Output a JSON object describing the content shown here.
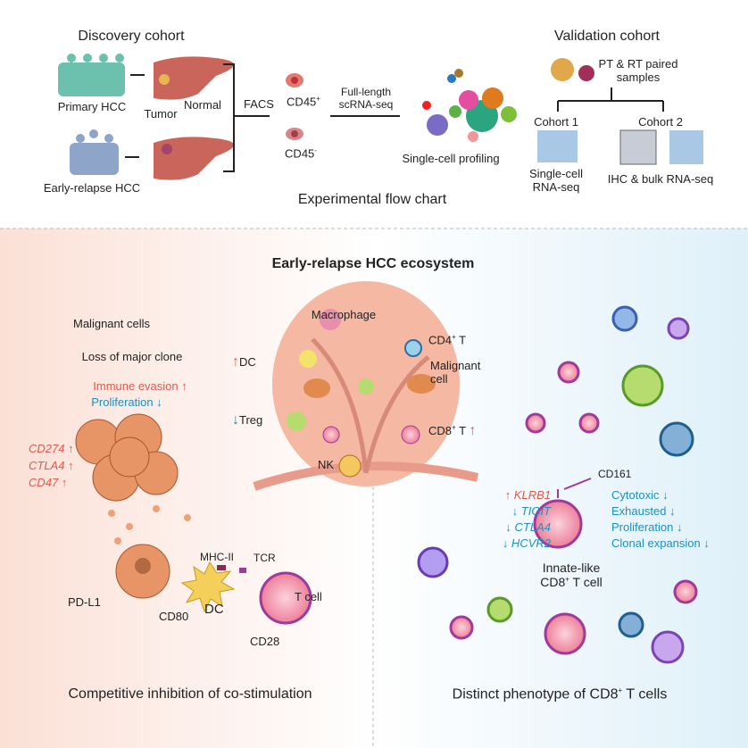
{
  "top": {
    "discovery_title": "Discovery cohort",
    "primary_hcc": "Primary HCC",
    "early_relapse_hcc": "Early-relapse HCC",
    "tumor": "Tumor",
    "normal": "Normal",
    "facs": "FACS",
    "cd45_pos": "CD45",
    "cd45_pos_sup": "+",
    "cd45_neg": "CD45",
    "cd45_neg_sup": "-",
    "seq_line1": "Full-length",
    "seq_line2": "scRNA-seq",
    "single_cell_profiling": "Single-cell profiling",
    "flow_title": "Experimental flow chart",
    "validation_title": "Validation cohort",
    "paired_line1": "PT & RT paired",
    "paired_line2": "samples",
    "cohort1": "Cohort 1",
    "cohort2": "Cohort 2",
    "cohort1_method_line1": "Single-cell",
    "cohort1_method_line2": "RNA-seq",
    "cohort2_method": "IHC & bulk RNA-seq"
  },
  "ecosystem": {
    "title": "Early-relapse HCC ecosystem",
    "macrophage": "Macrophage",
    "cd4t": "CD4",
    "cd4t_sup": "+",
    "cd4t_tail": " T",
    "dc": "DC",
    "malignant_line1": "Malignant",
    "malignant_line2": "cell",
    "treg": "Treg",
    "cd8t": "CD8",
    "cd8t_sup": "+",
    "cd8t_tail": " T",
    "nk": "NK",
    "up_arrow": "↑",
    "down_arrow": "↓"
  },
  "left": {
    "title": "Malignant cells",
    "subtitle": "Loss of major clone",
    "immune_evasion": "Immune evasion ↑",
    "proliferation": "Proliferation ↓",
    "genes": [
      "CD274 ↑",
      "CTLA4 ↑",
      "CD47 ↑"
    ],
    "pdl1": "PD-L1",
    "mhc2": "MHC-II",
    "tcr": "TCR",
    "tcell": "T cell",
    "cd80": "CD80",
    "dc": "DC",
    "cd28": "CD28",
    "caption": "Competitive inhibition of co-stimulation"
  },
  "right": {
    "cd161": "CD161",
    "genes": [
      {
        "label": "↑ KLRB1",
        "dir": "up"
      },
      {
        "label": "↓ TIGIT",
        "dir": "down"
      },
      {
        "label": "↓ CTLA4",
        "dir": "down"
      },
      {
        "label": "↓ HCVR2",
        "dir": "down"
      }
    ],
    "phenotypes": [
      "Cytotoxic ↓",
      "Exhausted ↓",
      "Proliferation ↓",
      "Clonal expansion ↓"
    ],
    "cell_line1": "Innate-like",
    "cell_line2": "CD8",
    "cell_line2_sup": "+",
    "cell_line2_tail": " T cell",
    "caption": "Distinct phenotype of CD8",
    "caption_sup": "+",
    "caption_tail": " T cells"
  },
  "colors": {
    "up": "#e05a4e",
    "down": "#1f8fbf",
    "liver": "#c9655a",
    "tumor_mass": "#e8a668",
    "left_bg": "#fbe2da",
    "right_bg": "#e2f1f9"
  }
}
